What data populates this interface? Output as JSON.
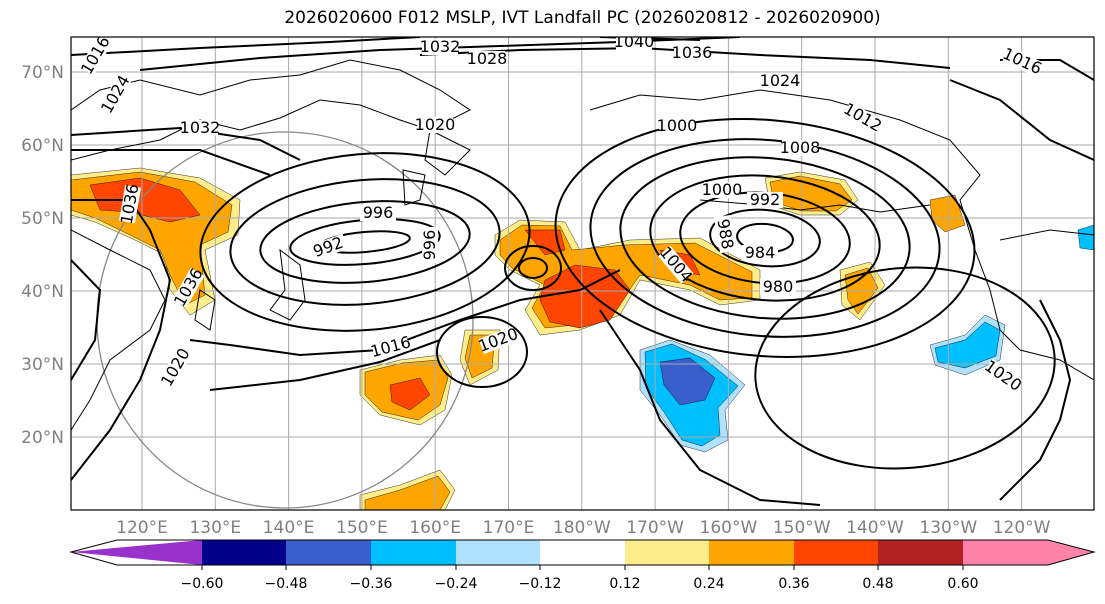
{
  "title": "2026020600 F012 MSLP, IVT Landfall PC (2026020812 - 2026020900)",
  "lat_ticks": [
    "70°N",
    "60°N",
    "50°N",
    "40°N",
    "30°N",
    "20°N"
  ],
  "lon_ticks": [
    "120°E",
    "130°E",
    "140°E",
    "150°E",
    "160°E",
    "170°E",
    "180°W",
    "170°W",
    "160°W",
    "150°W",
    "140°W",
    "130°W",
    "120°W"
  ],
  "colorbar": {
    "colors": [
      "#9932cc",
      "#00008b",
      "#3a5fcd",
      "#00bfff",
      "#b0e2ff",
      "#ffffff",
      "#ffec8b",
      "#ffa500",
      "#ff4500",
      "#b22222",
      "#ff82ab"
    ],
    "labels": [
      "−0.60",
      "−0.48",
      "−0.36",
      "−0.24",
      "−0.12",
      "0.12",
      "0.24",
      "0.36",
      "0.48",
      "0.60"
    ]
  },
  "contour_labels": [
    "1032",
    "1028",
    "1040",
    "1036",
    "1024",
    "1016",
    "1020",
    "1024",
    "1032",
    "1016",
    "1000",
    "1012",
    "1008",
    "996",
    "992",
    "1000",
    "992",
    "988",
    "984",
    "980",
    "1004",
    "996",
    "1036",
    "1036",
    "1016",
    "1020",
    "1020",
    "1020"
  ]
}
